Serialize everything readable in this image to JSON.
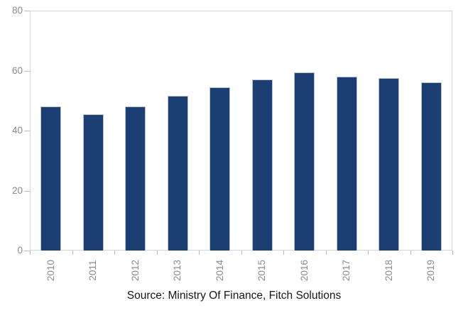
{
  "chart_data": {
    "type": "bar",
    "categories": [
      "2010",
      "2011",
      "2012",
      "2013",
      "2014",
      "2015",
      "2016",
      "2017",
      "2018",
      "2019"
    ],
    "values": [
      48,
      45.5,
      48,
      51.5,
      54.5,
      57,
      59.5,
      58,
      57.5,
      56
    ],
    "title": "",
    "xlabel": "",
    "ylabel": "",
    "ylim": [
      0,
      80
    ],
    "yticks": [
      0,
      20,
      40,
      60,
      80
    ],
    "grid": false,
    "legend_position": "none",
    "bar_color": "#1b3e73",
    "bar_border_color": "#b7c3d6",
    "axis_border_color": "#d2d6db",
    "tick_color": "#b4bfce",
    "axis_label_color": "#8b8b8b"
  },
  "footer": {
    "source_label": "Source: Ministry Of Finance, Fitch Solutions"
  }
}
